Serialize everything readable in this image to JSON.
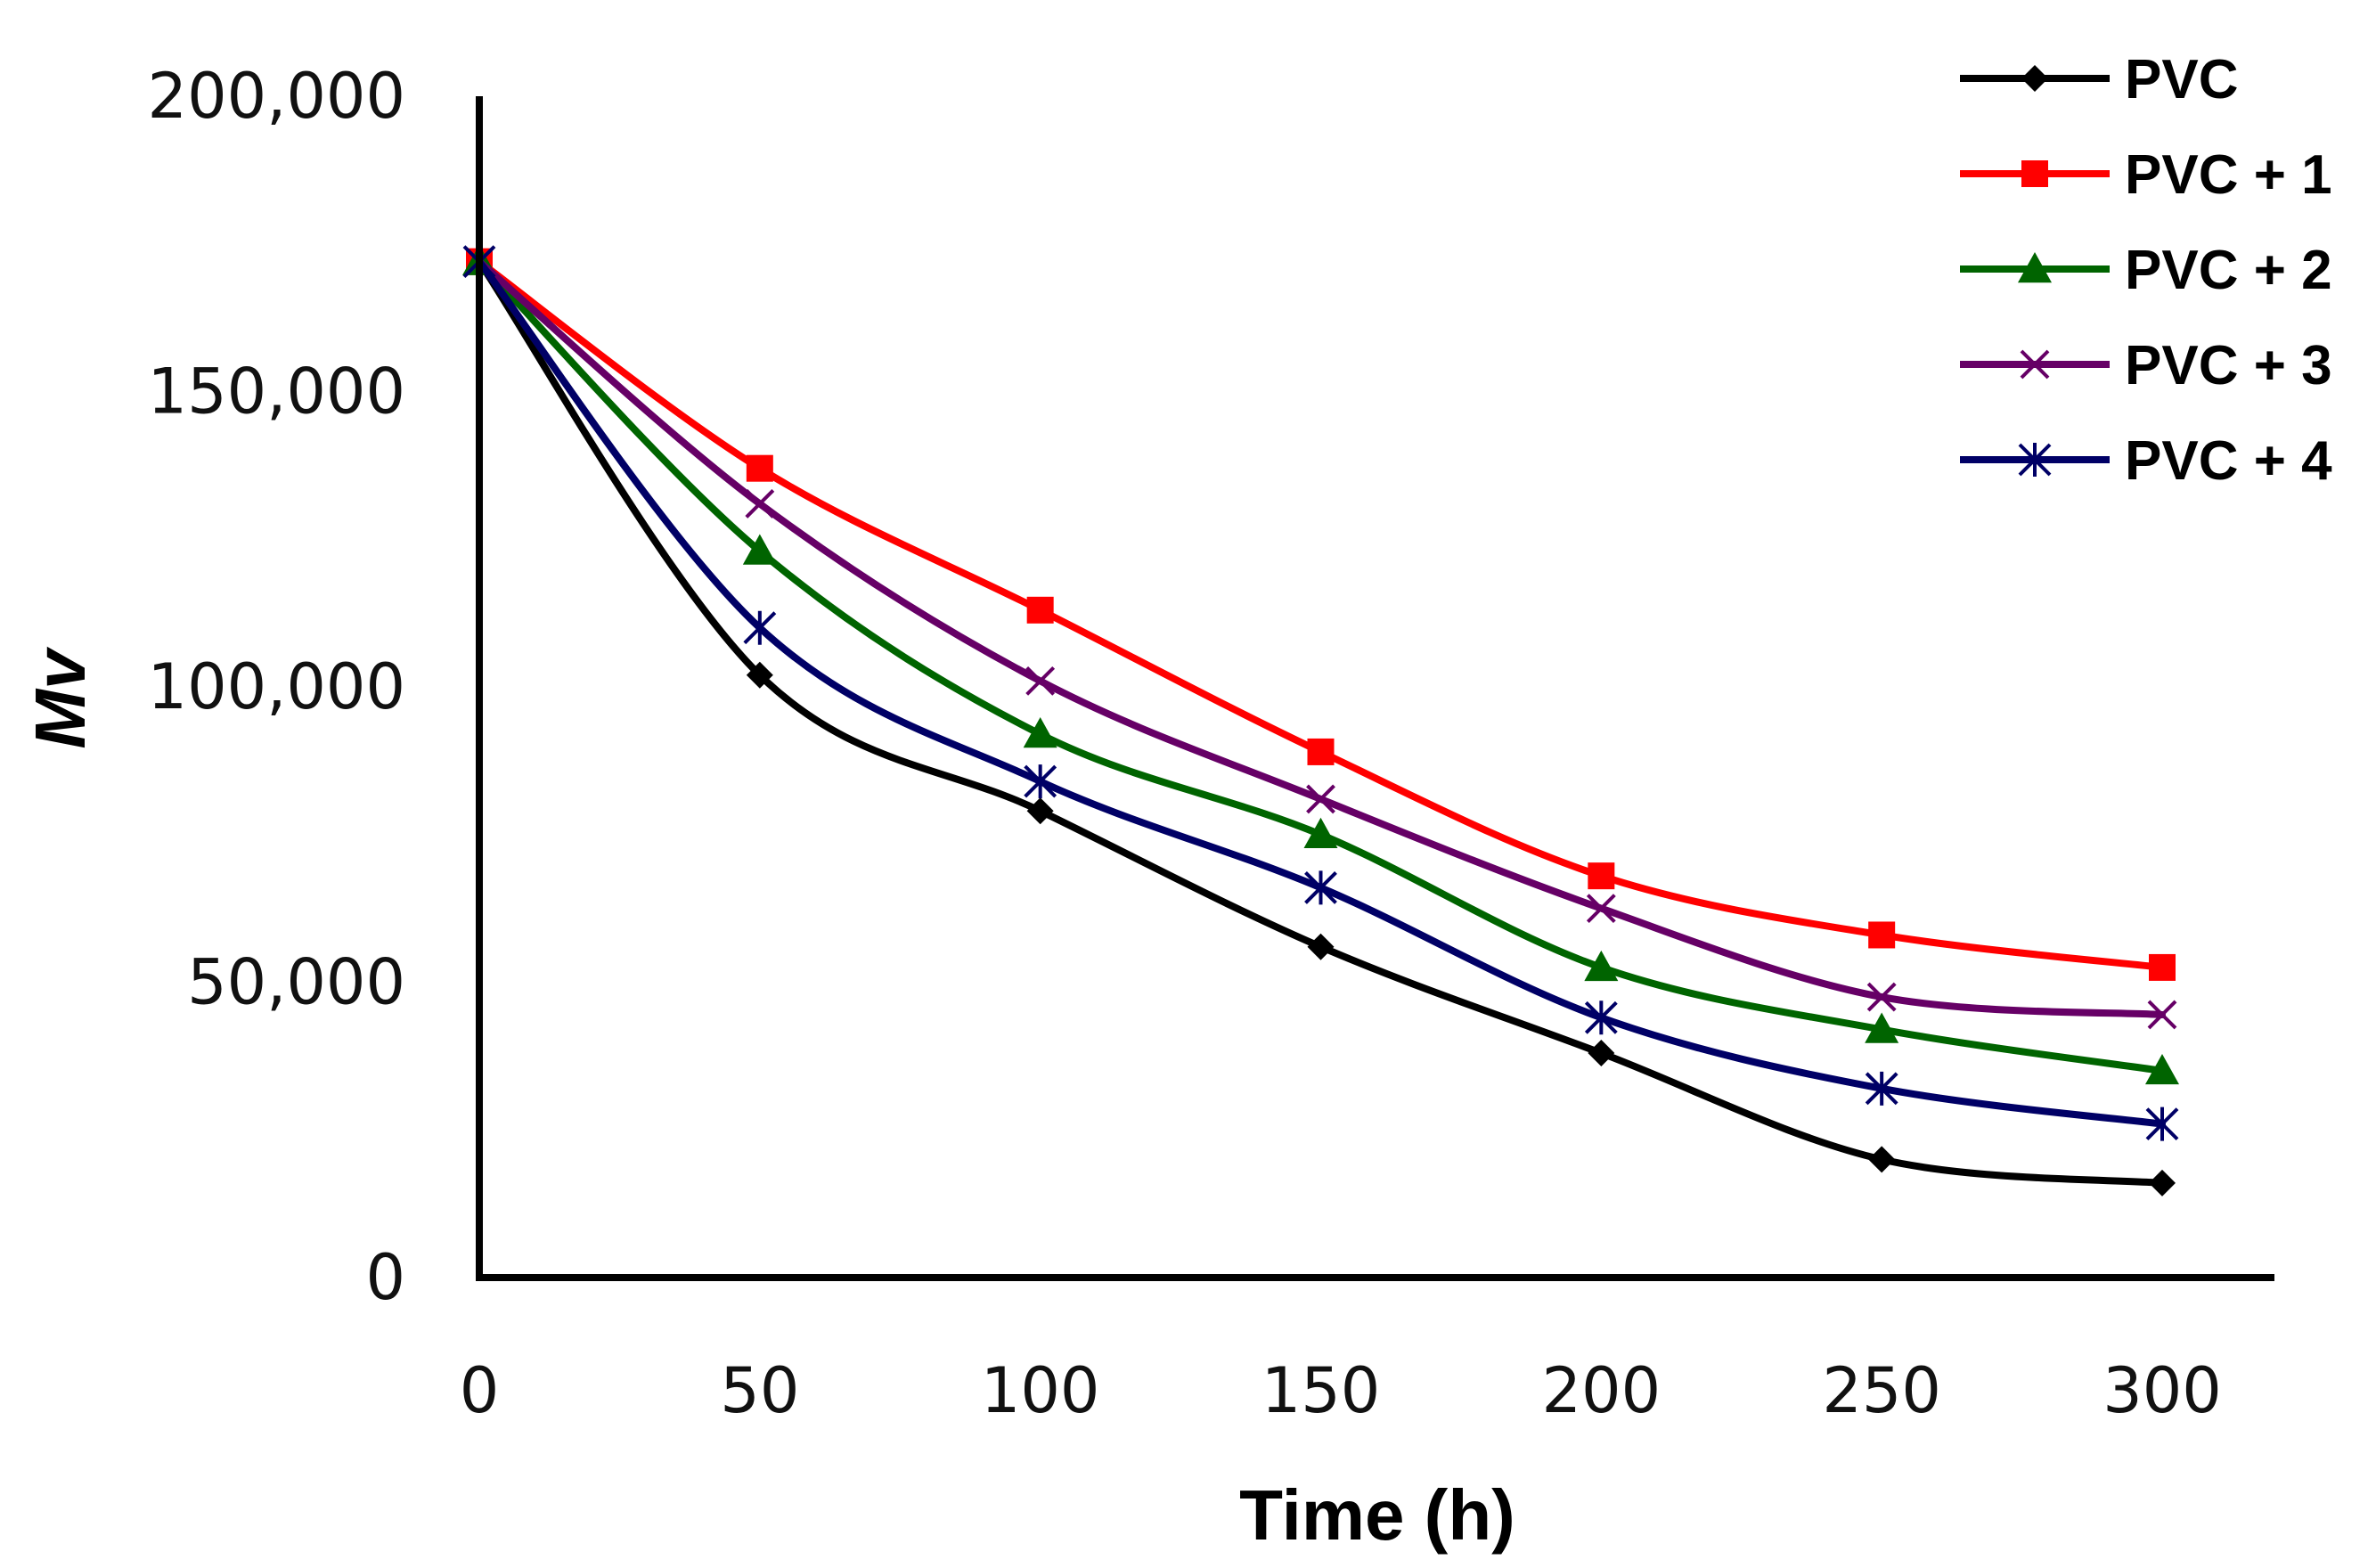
{
  "chart_data": {
    "type": "line",
    "title": "",
    "xlabel": "Time (h)",
    "ylabel": "Mv",
    "x": [
      0,
      50,
      100,
      150,
      200,
      250,
      300
    ],
    "x_tick_labels": [
      "0",
      "50",
      "100",
      "150",
      "200",
      "250",
      "300"
    ],
    "xlim": [
      0,
      300
    ],
    "y_ticks": [
      0,
      50000,
      100000,
      150000,
      200000
    ],
    "y_tick_labels": [
      "0",
      "50,000",
      "100,000",
      "150,000",
      "200,000"
    ],
    "ylim": [
      0,
      200000
    ],
    "grid": false,
    "legend_position": "top-right",
    "smooth_lines": true,
    "series": [
      {
        "name": "PVC",
        "color": "#000000",
        "marker": "diamond",
        "values": [
          172000,
          102000,
          79000,
          56000,
          38000,
          20000,
          16000
        ]
      },
      {
        "name": "PVC + 1",
        "color": "#ff0000",
        "marker": "square",
        "values": [
          172000,
          137000,
          113000,
          89000,
          68000,
          58000,
          52500
        ]
      },
      {
        "name": "PVC + 2",
        "color": "#006400",
        "marker": "triangle",
        "values": [
          172000,
          123000,
          92000,
          75000,
          52500,
          42000,
          35000
        ]
      },
      {
        "name": "PVC + 3",
        "color": "#660066",
        "marker": "x",
        "values": [
          172000,
          131000,
          101000,
          81000,
          62500,
          47500,
          44500
        ]
      },
      {
        "name": "PVC + 4",
        "color": "#000066",
        "marker": "asterisk",
        "values": [
          172000,
          110000,
          84000,
          66000,
          44000,
          32000,
          26000
        ]
      }
    ]
  }
}
